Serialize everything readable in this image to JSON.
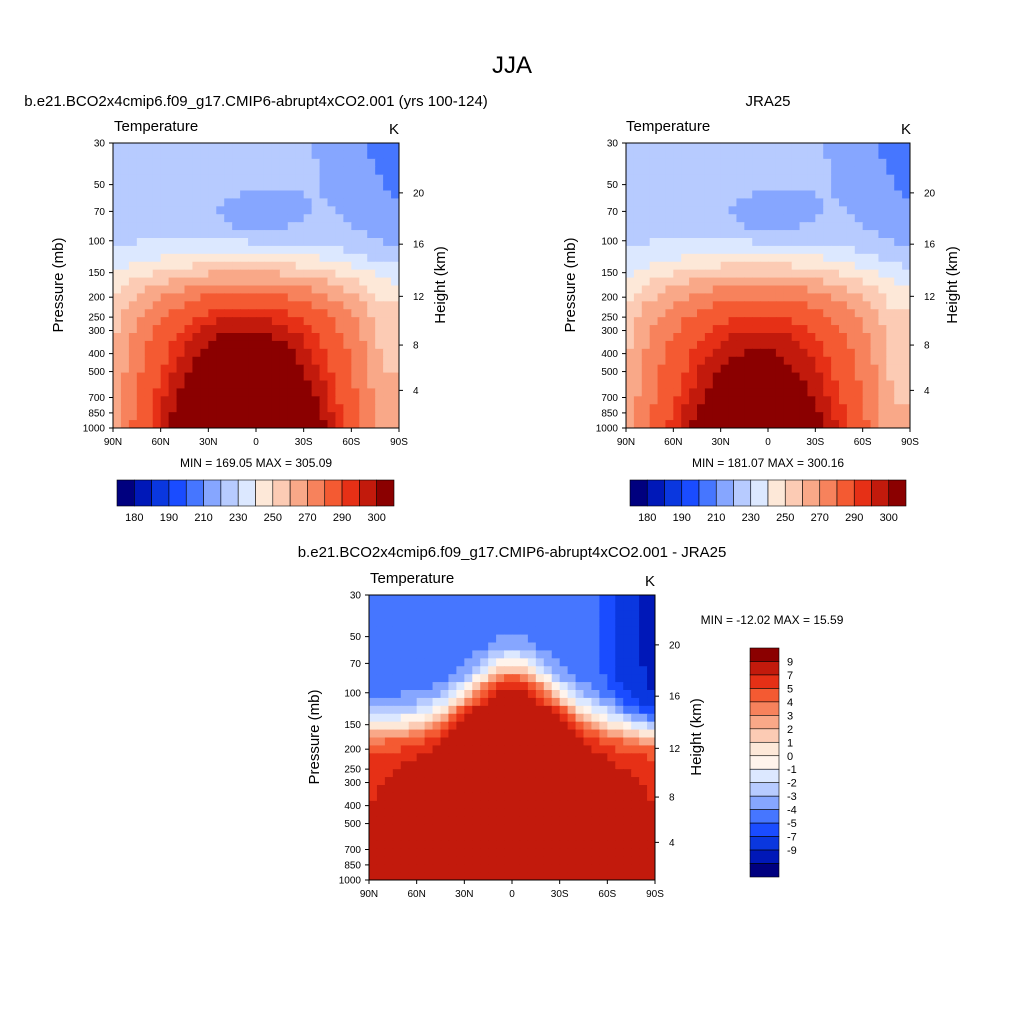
{
  "page": {
    "title": "JJA"
  },
  "colors": {
    "abs_palette": [
      "#00007f",
      "#0018b8",
      "#0a37df",
      "#1a4cff",
      "#4676ff",
      "#86a6ff",
      "#b7cbff",
      "#dce8ff",
      "#fde8d8",
      "#fccbb4",
      "#f9a888",
      "#f7825c",
      "#f45a32",
      "#e63016",
      "#c21a0c",
      "#8b0000"
    ],
    "diff_palette": [
      "#00007f",
      "#0018b8",
      "#0a37df",
      "#1a4cff",
      "#4676ff",
      "#86a6ff",
      "#b7cbff",
      "#dce8ff",
      "#fff4ec",
      "#fde8d8",
      "#fccbb4",
      "#f9a888",
      "#f7825c",
      "#f45a32",
      "#e63016",
      "#c21a0c",
      "#8b0000"
    ]
  },
  "chart_data": [
    {
      "type": "heatmap",
      "title": "b.e21.BCO2x4cmip6.f09_g17.CMIP6-abrupt4xCO2.001 (yrs 100-124)",
      "subtitle_left": "Temperature",
      "subtitle_right": "K",
      "xlabel": "",
      "ylabel": "Pressure (mb)",
      "y2label": "Height (km)",
      "x_ticks": [
        "90N",
        "60N",
        "30N",
        "0",
        "30S",
        "60S",
        "90S"
      ],
      "y_ticks": [
        "30",
        "50",
        "70",
        "100",
        "150",
        "200",
        "250",
        "300",
        "400",
        "500",
        "700",
        "850",
        "1000"
      ],
      "y2_ticks": [
        "20",
        "16",
        "12",
        "8",
        "4"
      ],
      "stats": "MIN = 169.05  MAX = 305.09",
      "colorbar_labels": [
        "180",
        "190",
        "210",
        "230",
        "250",
        "270",
        "290",
        "300"
      ],
      "model": "m1"
    },
    {
      "type": "heatmap",
      "title": "JRA25",
      "subtitle_left": "Temperature",
      "subtitle_right": "K",
      "xlabel": "",
      "ylabel": "Pressure (mb)",
      "y2label": "Height (km)",
      "x_ticks": [
        "90N",
        "60N",
        "30N",
        "0",
        "30S",
        "60S",
        "90S"
      ],
      "y_ticks": [
        "30",
        "50",
        "70",
        "100",
        "150",
        "200",
        "250",
        "300",
        "400",
        "500",
        "700",
        "850",
        "1000"
      ],
      "y2_ticks": [
        "20",
        "16",
        "12",
        "8",
        "4"
      ],
      "stats": "MIN = 181.07  MAX = 300.16",
      "colorbar_labels": [
        "180",
        "190",
        "210",
        "230",
        "250",
        "270",
        "290",
        "300"
      ],
      "model": "m2"
    },
    {
      "type": "heatmap",
      "title": "b.e21.BCO2x4cmip6.f09_g17.CMIP6-abrupt4xCO2.001 - JRA25",
      "subtitle_left": "Temperature",
      "subtitle_right": "K",
      "xlabel": "",
      "ylabel": "Pressure (mb)",
      "y2label": "Height (km)",
      "x_ticks": [
        "90N",
        "60N",
        "30N",
        "0",
        "30S",
        "60S",
        "90S"
      ],
      "y_ticks": [
        "30",
        "50",
        "70",
        "100",
        "150",
        "200",
        "250",
        "300",
        "400",
        "500",
        "700",
        "850",
        "1000"
      ],
      "y2_ticks": [
        "20",
        "16",
        "12",
        "8",
        "4"
      ],
      "stats": "MIN = -12.02  MAX =  15.59",
      "colorbar_labels": [
        "9",
        "7",
        "5",
        "4",
        "3",
        "2",
        "1",
        "0",
        "-1",
        "-2",
        "-3",
        "-4",
        "-5",
        "-7",
        "-9"
      ],
      "model": "diff"
    }
  ]
}
